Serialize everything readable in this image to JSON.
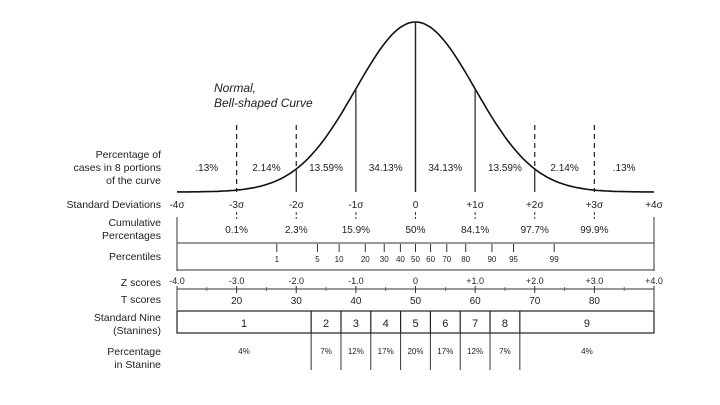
{
  "title_lines": [
    "Normal,",
    "Bell-shaped Curve"
  ],
  "labels": {
    "pct_cases": [
      "Percentage of",
      "cases in 8 portions",
      "of the curve"
    ],
    "std_dev": "Standard Deviations",
    "cumulative": [
      "Cumulative",
      "Percentages"
    ],
    "percentiles": "Percentiles",
    "z_scores": "Z scores",
    "t_scores": "T scores",
    "stanine": [
      "Standard Nine",
      "(Stanines)"
    ],
    "pct_stanine": [
      "Percentage",
      "in Stanine"
    ]
  },
  "chart_data": {
    "type": "area",
    "portion_percentages": [
      ".13%",
      "2.14%",
      "13.59%",
      "34.13%",
      "34.13%",
      "13.59%",
      "2.14%",
      ".13%"
    ],
    "sd_ticks": [
      {
        "value": -4,
        "label": "-4σ"
      },
      {
        "value": -3,
        "label": "-3σ"
      },
      {
        "value": -2,
        "label": "-2σ"
      },
      {
        "value": -1,
        "label": "-1σ"
      },
      {
        "value": 0,
        "label": "0"
      },
      {
        "value": 1,
        "label": "+1σ"
      },
      {
        "value": 2,
        "label": "+2σ"
      },
      {
        "value": 3,
        "label": "+3σ"
      },
      {
        "value": 4,
        "label": "+4σ"
      }
    ],
    "cumulative": [
      {
        "value": -3,
        "label": "0.1%"
      },
      {
        "value": -2,
        "label": "2.3%"
      },
      {
        "value": -1,
        "label": "15.9%"
      },
      {
        "value": 0,
        "label": "50%"
      },
      {
        "value": 1,
        "label": "84.1%"
      },
      {
        "value": 2,
        "label": "97.7%"
      },
      {
        "value": 3,
        "label": "99.9%"
      }
    ],
    "percentiles": [
      {
        "value": 1,
        "label": "1"
      },
      {
        "value": 5,
        "label": "5"
      },
      {
        "value": 10,
        "label": "10"
      },
      {
        "value": 20,
        "label": "20"
      },
      {
        "value": 30,
        "label": "30"
      },
      {
        "value": 40,
        "label": "40"
      },
      {
        "value": 50,
        "label": "50"
      },
      {
        "value": 60,
        "label": "60"
      },
      {
        "value": 70,
        "label": "70"
      },
      {
        "value": 80,
        "label": "80"
      },
      {
        "value": 90,
        "label": "90"
      },
      {
        "value": 95,
        "label": "95"
      },
      {
        "value": 99,
        "label": "99"
      }
    ],
    "z_scores": [
      {
        "value": -4,
        "label": "-4.0"
      },
      {
        "value": -3,
        "label": "-3.0"
      },
      {
        "value": -2,
        "label": "-2.0"
      },
      {
        "value": -1,
        "label": "-1.0"
      },
      {
        "value": 0,
        "label": "0"
      },
      {
        "value": 1,
        "label": "+1.0"
      },
      {
        "value": 2,
        "label": "+2.0"
      },
      {
        "value": 3,
        "label": "+3.0"
      },
      {
        "value": 4,
        "label": "+4.0"
      }
    ],
    "t_scores": [
      {
        "value": -3,
        "label": "20"
      },
      {
        "value": -2,
        "label": "30"
      },
      {
        "value": -1,
        "label": "40"
      },
      {
        "value": 0,
        "label": "50"
      },
      {
        "value": 1,
        "label": "60"
      },
      {
        "value": 2,
        "label": "70"
      },
      {
        "value": 3,
        "label": "80"
      }
    ],
    "stanines": [
      {
        "label": "1",
        "pct": "4%",
        "from": -4,
        "to": -1.75
      },
      {
        "label": "2",
        "pct": "7%",
        "from": -1.75,
        "to": -1.25
      },
      {
        "label": "3",
        "pct": "12%",
        "from": -1.25,
        "to": -0.75
      },
      {
        "label": "4",
        "pct": "17%",
        "from": -0.75,
        "to": -0.25
      },
      {
        "label": "5",
        "pct": "20%",
        "from": -0.25,
        "to": 0.25
      },
      {
        "label": "6",
        "pct": "17%",
        "from": 0.25,
        "to": 0.75
      },
      {
        "label": "7",
        "pct": "12%",
        "from": 0.75,
        "to": 1.25
      },
      {
        "label": "8",
        "pct": "7%",
        "from": 1.25,
        "to": 1.75
      },
      {
        "label": "9",
        "pct": "4%",
        "from": 1.75,
        "to": 4
      }
    ]
  }
}
